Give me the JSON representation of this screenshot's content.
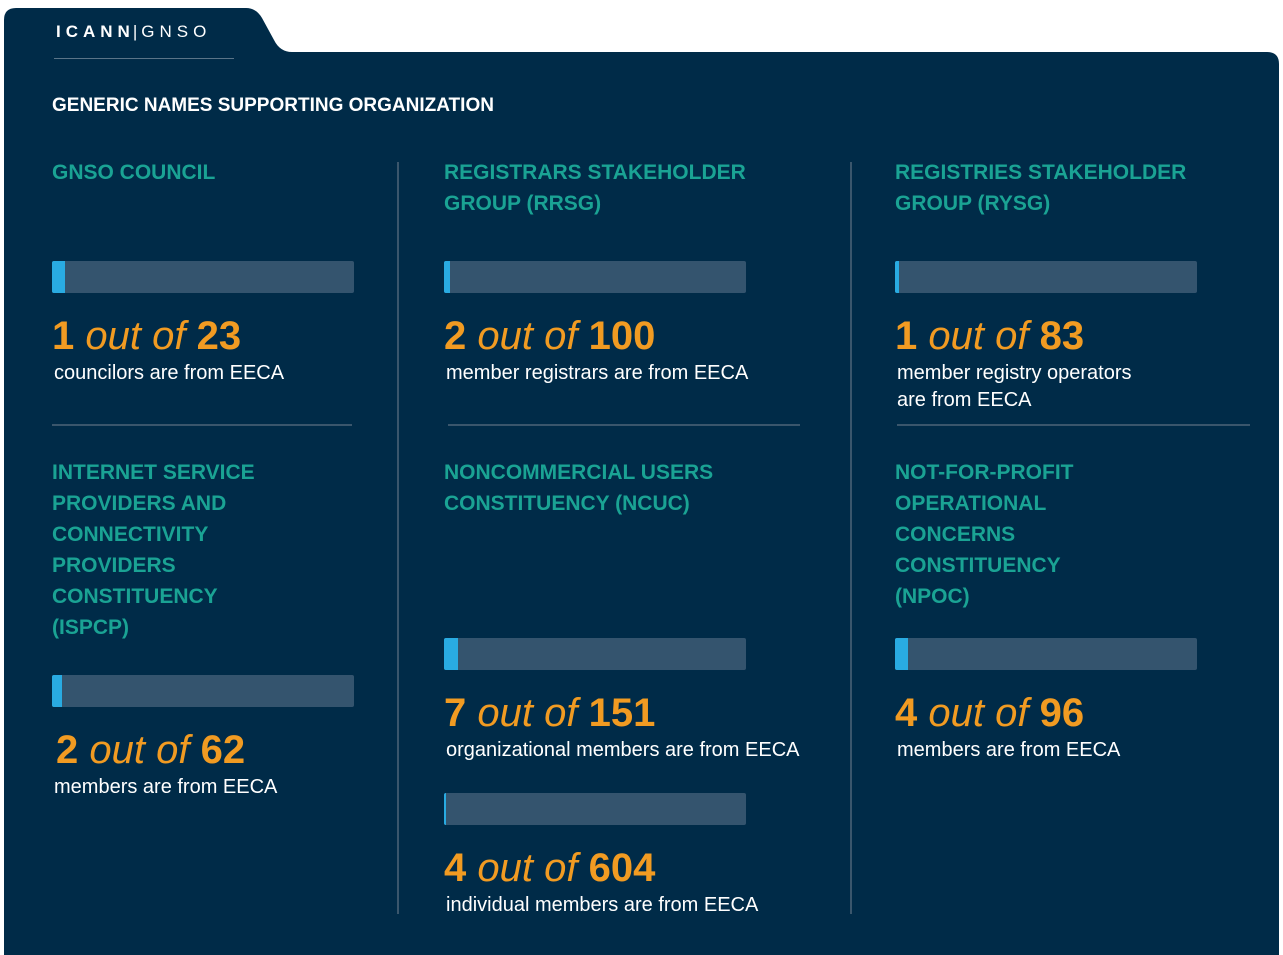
{
  "header": {
    "brand": "ICANN",
    "separator": "|",
    "sub": "GNSO"
  },
  "title": "GENERIC NAMES SUPPORTING ORGANIZATION",
  "groups": [
    {
      "name_lines": [
        "GNSO COUNCIL"
      ],
      "stats": [
        {
          "count": 1,
          "connector": "out of",
          "total": 23,
          "caption_lines": [
            "councilors are from EECA"
          ]
        }
      ]
    },
    {
      "name_lines": [
        "REGISTRARS STAKEHOLDER",
        "GROUP (RRSG)"
      ],
      "stats": [
        {
          "count": 2,
          "connector": "out of",
          "total": 100,
          "caption_lines": [
            "member registrars are from EECA"
          ]
        }
      ]
    },
    {
      "name_lines": [
        "REGISTRIES STAKEHOLDER",
        "GROUP (RYSG)"
      ],
      "stats": [
        {
          "count": 1,
          "connector": "out of",
          "total": 83,
          "caption_lines": [
            "member registry operators",
            "are from EECA"
          ]
        }
      ]
    },
    {
      "name_lines": [
        "INTERNET SERVICE",
        "PROVIDERS AND",
        "CONNECTIVITY",
        "PROVIDERS",
        "CONSTITUENCY",
        "(ISPCP)"
      ],
      "stats": [
        {
          "count": 2,
          "connector": "out of",
          "total": 62,
          "caption_lines": [
            "members are from EECA"
          ]
        }
      ]
    },
    {
      "name_lines": [
        "NONCOMMERCIAL USERS",
        "CONSTITUENCY (NCUC)"
      ],
      "stats": [
        {
          "count": 7,
          "connector": "out of",
          "total": 151,
          "caption_lines": [
            "organizational members are from EECA"
          ]
        },
        {
          "count": 4,
          "connector": "out of",
          "total": 604,
          "caption_lines": [
            "individual members are from EECA"
          ]
        }
      ]
    },
    {
      "name_lines": [
        "NOT-FOR-PROFIT",
        "OPERATIONAL",
        "CONCERNS",
        "CONSTITUENCY",
        "(NPOC)"
      ],
      "stats": [
        {
          "count": 4,
          "connector": "out of",
          "total": 96,
          "caption_lines": [
            "members are from EECA"
          ]
        }
      ]
    }
  ]
}
